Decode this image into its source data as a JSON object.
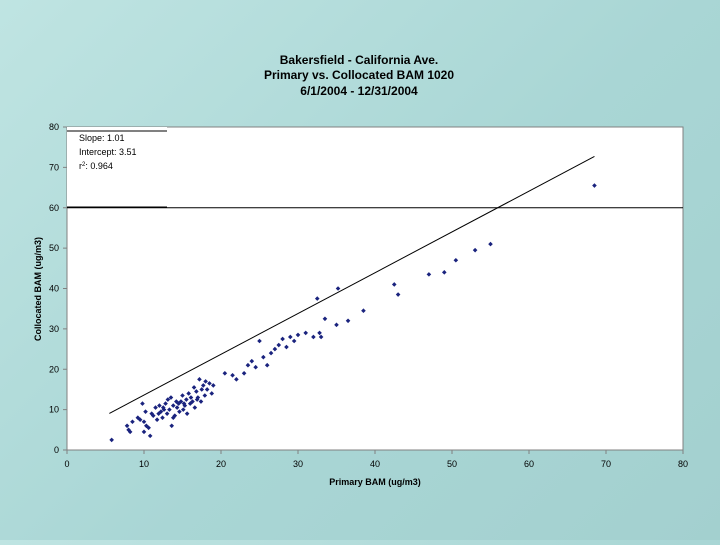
{
  "chart_data": {
    "type": "scatter",
    "title_lines": [
      "Bakersfield - California Ave.",
      "Primary vs. Collocated BAM 1020",
      "6/1/2004 - 12/31/2004"
    ],
    "xlabel": "Primary BAM (ug/m3)",
    "ylabel": "Collocated BAM (ug/m3)",
    "xlim": [
      0,
      80
    ],
    "ylim": [
      0,
      80
    ],
    "xticks": [
      0,
      10,
      20,
      30,
      40,
      50,
      60,
      70,
      80
    ],
    "yticks": [
      0,
      10,
      20,
      30,
      40,
      50,
      60,
      70,
      80
    ],
    "ytick_labels": [
      "0",
      "10",
      "20",
      "30",
      "40",
      "50",
      "60",
      "70",
      "80"
    ],
    "grid": false,
    "legend": "none",
    "stats": {
      "slope": "Slope: 1.01",
      "intercept": "Intercept: 3.51",
      "r2_prefix": "r",
      "r2_sup": "2",
      "r2_value": ": 0.964"
    },
    "trendline": {
      "slope": 1.01,
      "intercept": 3.51,
      "x_range": [
        5.5,
        68.5
      ]
    },
    "marker_color": "#1a237e",
    "x": [
      5.8,
      7.8,
      8.0,
      8.2,
      8.5,
      9.2,
      9.5,
      9.8,
      10.0,
      10.2,
      10.3,
      10.6,
      10.8,
      11.0,
      11.2,
      11.5,
      11.7,
      11.9,
      12.0,
      12.2,
      12.4,
      12.6,
      12.8,
      13.0,
      13.1,
      13.3,
      13.5,
      13.6,
      13.8,
      14.0,
      14.2,
      14.3,
      14.5,
      14.6,
      14.8,
      15.0,
      15.1,
      15.3,
      15.5,
      15.6,
      15.8,
      16.0,
      16.1,
      16.3,
      16.5,
      16.6,
      16.8,
      17.0,
      17.2,
      17.4,
      17.5,
      17.7,
      17.9,
      18.0,
      18.2,
      18.5,
      18.8,
      19.0,
      20.5,
      21.5,
      22.0,
      23.0,
      23.5,
      24.0,
      24.5,
      25.0,
      25.5,
      26.0,
      26.5,
      27.0,
      27.5,
      28.0,
      28.5,
      29.0,
      29.5,
      30.0,
      31.0,
      32.0,
      32.5,
      32.8,
      33.0,
      33.5,
      35.0,
      35.2,
      36.5,
      38.5,
      42.5,
      43.0,
      47.0,
      49.0,
      50.5,
      53.0,
      55.0,
      68.5,
      10.0,
      12.5,
      13.8,
      15.2,
      16.9
    ],
    "y": [
      2.5,
      6.0,
      5.0,
      4.5,
      7.0,
      8.0,
      7.5,
      11.5,
      4.5,
      9.5,
      6.0,
      5.5,
      3.5,
      9.0,
      8.5,
      10.5,
      7.5,
      9.0,
      11.0,
      9.5,
      8.0,
      10.0,
      11.5,
      9.0,
      12.5,
      10.0,
      13.0,
      6.0,
      11.0,
      8.5,
      12.0,
      10.5,
      11.5,
      9.5,
      12.0,
      13.5,
      10.0,
      11.0,
      12.5,
      9.0,
      14.0,
      11.5,
      13.0,
      12.0,
      15.5,
      10.5,
      14.5,
      13.0,
      17.5,
      12.0,
      15.0,
      16.0,
      13.5,
      17.0,
      15.0,
      16.5,
      14.0,
      16.0,
      19.0,
      18.5,
      17.5,
      19.0,
      21.0,
      22.0,
      20.5,
      27.0,
      23.0,
      21.0,
      24.0,
      25.0,
      26.0,
      27.5,
      25.5,
      28.0,
      27.0,
      28.5,
      29.0,
      28.0,
      37.5,
      29.0,
      28.0,
      32.5,
      31.0,
      40.0,
      32.0,
      34.5,
      41.0,
      38.5,
      43.5,
      44.0,
      47.0,
      49.5,
      51.0,
      65.5,
      7.0,
      10.5,
      8.0,
      11.5,
      12.5
    ]
  }
}
